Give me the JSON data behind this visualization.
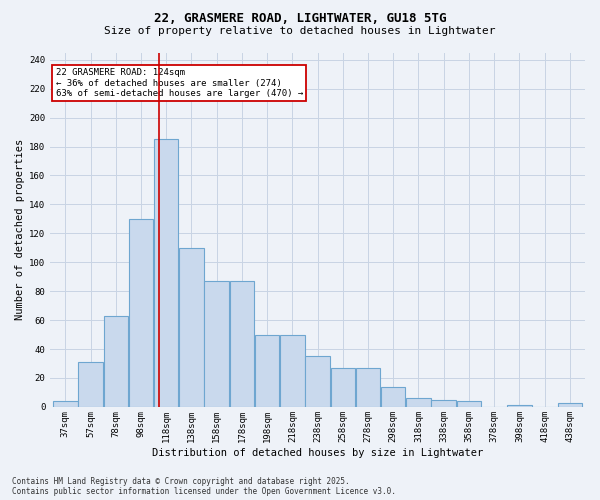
{
  "title": "22, GRASMERE ROAD, LIGHTWATER, GU18 5TG",
  "subtitle": "Size of property relative to detached houses in Lightwater",
  "xlabel": "Distribution of detached houses by size in Lightwater",
  "ylabel": "Number of detached properties",
  "bar_centers": [
    0,
    1,
    2,
    3,
    4,
    5,
    6,
    7,
    8,
    9,
    10,
    11,
    12,
    13,
    14,
    15,
    16,
    17,
    18,
    19,
    20
  ],
  "bar_heights": [
    4,
    31,
    63,
    130,
    185,
    110,
    87,
    87,
    50,
    50,
    35,
    27,
    27,
    14,
    6,
    5,
    4,
    0,
    1,
    0,
    3
  ],
  "bar_color": "#c9d9ed",
  "bar_edge_color": "#6ea6d0",
  "bar_edge_width": 0.8,
  "grid_color": "#c8d4e4",
  "bg_color": "#eef2f8",
  "property_line_x": 3.7,
  "property_line_color": "#cc0000",
  "ylim": [
    0,
    245
  ],
  "yticks": [
    0,
    20,
    40,
    60,
    80,
    100,
    120,
    140,
    160,
    180,
    200,
    220,
    240
  ],
  "annotation_text": "22 GRASMERE ROAD: 124sqm\n← 36% of detached houses are smaller (274)\n63% of semi-detached houses are larger (470) →",
  "annotation_box_color": "#ffffff",
  "annotation_box_edge": "#cc0000",
  "footer_line1": "Contains HM Land Registry data © Crown copyright and database right 2025.",
  "footer_line2": "Contains public sector information licensed under the Open Government Licence v3.0.",
  "tick_labels": [
    "37sqm",
    "57sqm",
    "78sqm",
    "98sqm",
    "118sqm",
    "138sqm",
    "158sqm",
    "178sqm",
    "198sqm",
    "218sqm",
    "238sqm",
    "258sqm",
    "278sqm",
    "298sqm",
    "318sqm",
    "338sqm",
    "358sqm",
    "378sqm",
    "398sqm",
    "418sqm",
    "438sqm"
  ],
  "title_fontsize": 9,
  "subtitle_fontsize": 8,
  "axis_label_fontsize": 7.5,
  "tick_fontsize": 6.5,
  "annotation_fontsize": 6.5,
  "footer_fontsize": 5.5
}
